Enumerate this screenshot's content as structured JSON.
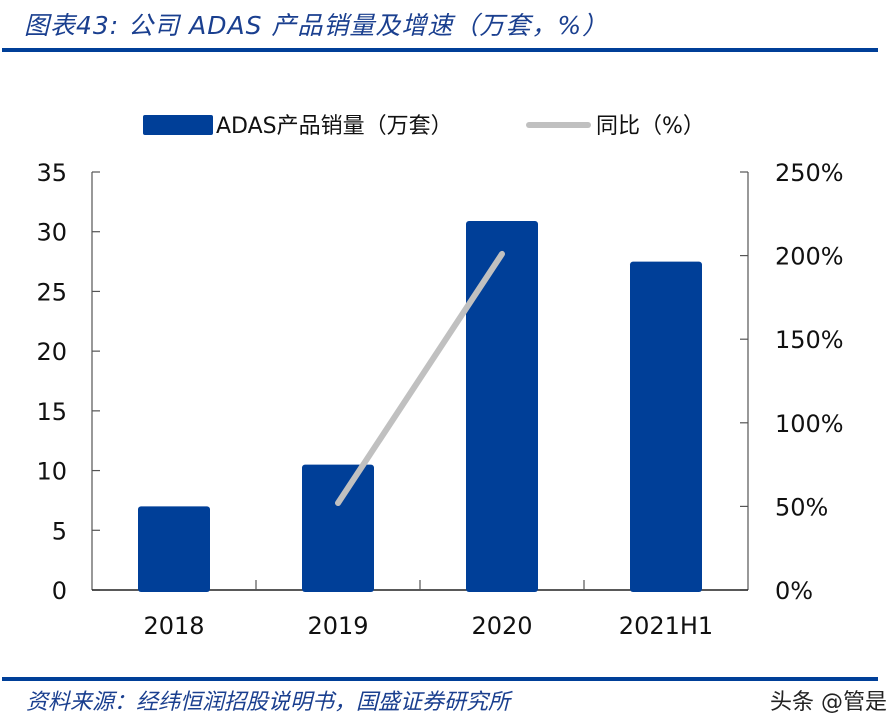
{
  "header": {
    "title": "图表43:  公司 ADAS 产品销量及增速（万套，%）"
  },
  "legend": {
    "bar_label": "ADAS产品销量（万套）",
    "line_label": "同比（%）"
  },
  "footer": {
    "source": "资料来源：经纬恒润招股说明书，国盛证券研究所",
    "watermark": "头条 @管是"
  },
  "colors": {
    "bar": "#003f98",
    "line": "#c0c0c0",
    "rule": "#003f98",
    "title": "#1a3f8f"
  },
  "chart_data": {
    "type": "bar+line",
    "title": "公司 ADAS 产品销量及增速（万套，%）",
    "categories": [
      "2018",
      "2019",
      "2020",
      "2021H1"
    ],
    "series": [
      {
        "name": "ADAS产品销量（万套）",
        "type": "bar",
        "axis": "left",
        "values": [
          7.0,
          10.5,
          30.9,
          27.5
        ]
      },
      {
        "name": "同比（%）",
        "type": "line",
        "axis": "right",
        "values": [
          null,
          52,
          201,
          null
        ]
      }
    ],
    "left_axis": {
      "ylim": [
        0,
        35
      ],
      "ticks": [
        "0",
        "5",
        "10",
        "15",
        "20",
        "25",
        "30",
        "35"
      ]
    },
    "right_axis": {
      "ylim": [
        0,
        250
      ],
      "ticks": [
        "0%",
        "50%",
        "100%",
        "150%",
        "200%",
        "250%"
      ]
    },
    "xlabel": "",
    "ylabel": "",
    "grid": false,
    "legend_position": "top"
  }
}
